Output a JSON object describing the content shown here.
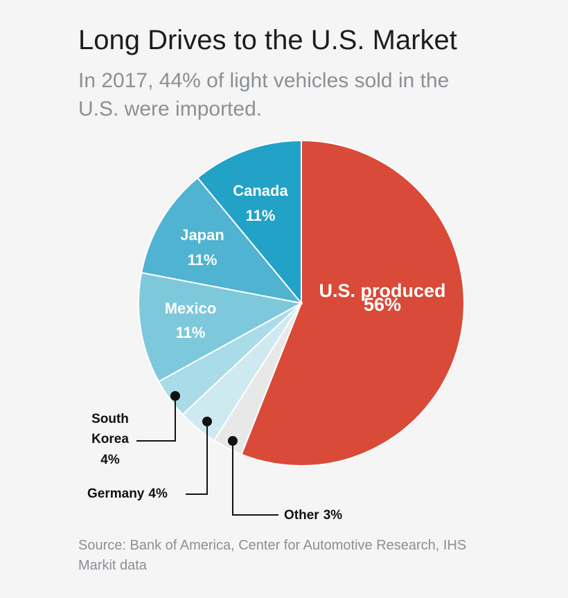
{
  "chart_data": {
    "type": "pie",
    "title": "Long Drives to the U.S. Market",
    "subtitle": "In 2017, 44% of light vehicles sold in the U.S. were imported.",
    "source": "Source: Bank of America, Center for Automotive Research, IHS Markit data",
    "categories": [
      "U.S. produced",
      "Other",
      "Germany",
      "South Korea",
      "Mexico",
      "Japan",
      "Canada"
    ],
    "values": [
      56,
      3,
      4,
      4,
      11,
      11,
      11
    ],
    "value_labels": [
      "56%",
      "3%",
      "4%",
      "4%",
      "11%",
      "11%",
      "11%"
    ],
    "colors": [
      "#d94a38",
      "#e8e8e8",
      "#cfe9f1",
      "#a9dbe8",
      "#7ec8dc",
      "#4fb3d1",
      "#22a2c6"
    ]
  }
}
